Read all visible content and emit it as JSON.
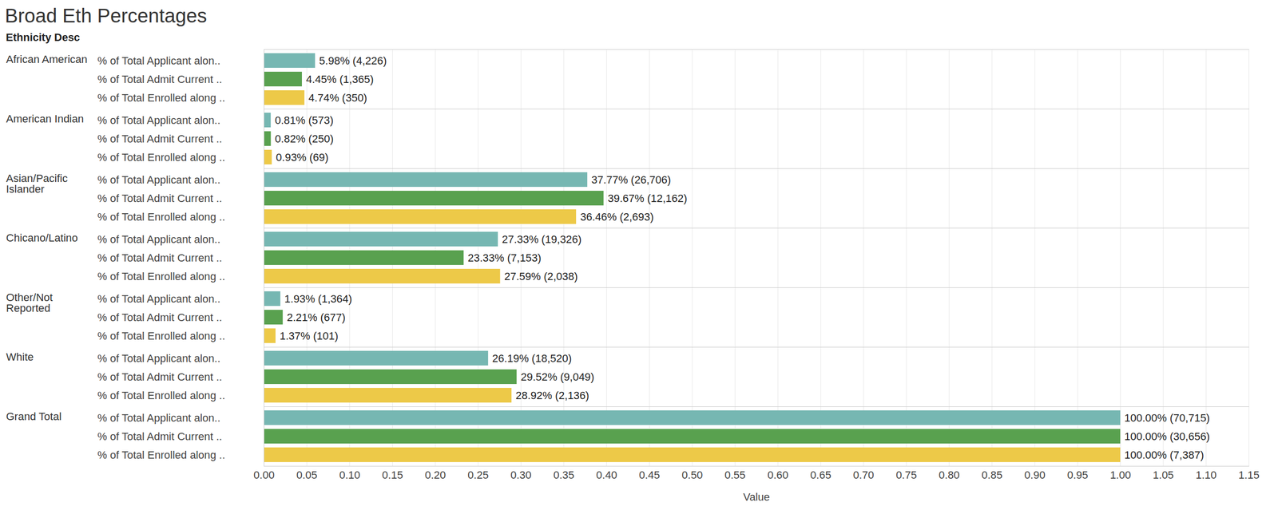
{
  "chart_data": {
    "type": "bar",
    "title": "Broad Eth Percentages",
    "y_label": "Ethnicity Desc",
    "x_label": "Value",
    "orientation": "horizontal",
    "data_labels": true,
    "grid": true,
    "categories": [
      "African American",
      "American Indian",
      "Asian/Pacific Islander",
      "Chicano/Latino",
      "Other/Not Reported",
      "White",
      "Grand Total"
    ],
    "series": [
      {
        "name": "% of Total Applicant alon..",
        "color": "#76b7b2",
        "values": [
          0.0598,
          0.0081,
          0.3777,
          0.2733,
          0.0193,
          0.2619,
          1.0
        ],
        "value_labels": [
          "5.98% (4,226)",
          "0.81% (573)",
          "37.77% (26,706)",
          "27.33% (19,326)",
          "1.93% (1,364)",
          "26.19% (18,520)",
          "100.00% (70,715)"
        ]
      },
      {
        "name": "% of Total Admit Current ..",
        "color": "#59a14f",
        "values": [
          0.0445,
          0.0082,
          0.3967,
          0.2333,
          0.0221,
          0.2952,
          1.0
        ],
        "value_labels": [
          "4.45% (1,365)",
          "0.82% (250)",
          "39.67% (12,162)",
          "23.33% (7,153)",
          "2.21% (677)",
          "29.52% (9,049)",
          "100.00% (30,656)"
        ]
      },
      {
        "name": "% of Total Enrolled along ..",
        "color": "#edc948",
        "values": [
          0.0474,
          0.0093,
          0.3646,
          0.2759,
          0.0137,
          0.2892,
          1.0
        ],
        "value_labels": [
          "4.74% (350)",
          "0.93% (69)",
          "36.46% (2,693)",
          "27.59% (2,038)",
          "1.37% (101)",
          "28.92% (2,136)",
          "100.00% (7,387)"
        ]
      }
    ],
    "xlim": [
      0,
      1.15
    ],
    "xticks": [
      {
        "value": 0,
        "label": "0.00"
      },
      {
        "value": 0.05,
        "label": "0.05"
      },
      {
        "value": 0.1,
        "label": "0.10"
      },
      {
        "value": 0.15,
        "label": "0.15"
      },
      {
        "value": 0.2,
        "label": "0.20"
      },
      {
        "value": 0.25,
        "label": "0.25"
      },
      {
        "value": 0.3,
        "label": "0.30"
      },
      {
        "value": 0.35,
        "label": "0.35"
      },
      {
        "value": 0.4,
        "label": "0.40"
      },
      {
        "value": 0.45,
        "label": "0.45"
      },
      {
        "value": 0.5,
        "label": "0.50"
      },
      {
        "value": 0.55,
        "label": "0.55"
      },
      {
        "value": 0.6,
        "label": "0.60"
      },
      {
        "value": 0.65,
        "label": "0.65"
      },
      {
        "value": 0.7,
        "label": "0.70"
      },
      {
        "value": 0.75,
        "label": "0.75"
      },
      {
        "value": 0.8,
        "label": "0.80"
      },
      {
        "value": 0.85,
        "label": "0.85"
      },
      {
        "value": 0.9,
        "label": "0.90"
      },
      {
        "value": 0.95,
        "label": "0.95"
      },
      {
        "value": 1,
        "label": "1.00"
      },
      {
        "value": 1.05,
        "label": "1.05"
      },
      {
        "value": 1.1,
        "label": "1.10"
      },
      {
        "value": 1.15,
        "label": "1.15"
      }
    ]
  }
}
